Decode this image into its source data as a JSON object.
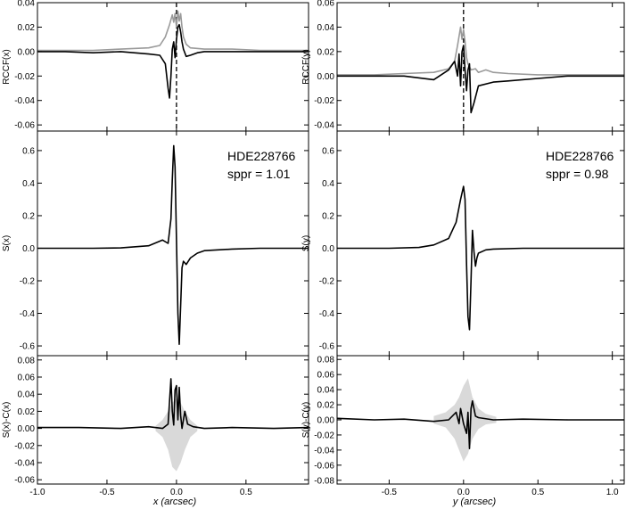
{
  "figure": {
    "annotations": {
      "left": [
        "HDE228766",
        "sppr = 1.01"
      ],
      "right": [
        "HDE228766",
        "sppr = 0.98"
      ]
    },
    "xlabels": {
      "left": "x (arcsec)",
      "right": "y (arcsec)"
    },
    "colors": {
      "black": "#000000",
      "gray": "#9a9a9a",
      "band": "#d9d9d9"
    }
  },
  "chart_data": [
    {
      "id": "rccf_x",
      "type": "line",
      "ylabel": "RCCF(x)",
      "ylim": [
        -0.065,
        0.04
      ],
      "xlim": [
        -1.0,
        0.95
      ],
      "yticks": [
        0.04,
        0.02,
        0.0,
        -0.02,
        -0.04,
        -0.06
      ],
      "ytick_labels": [
        "0.04",
        "0.02",
        "0.00",
        "-0.02",
        "-0.04",
        "-0.06"
      ],
      "vline_x": 0.0,
      "series": [
        {
          "color": "#9a9a9a",
          "x": [
            -1.0,
            -0.8,
            -0.6,
            -0.4,
            -0.2,
            -0.12,
            -0.08,
            -0.05,
            -0.03,
            -0.02,
            -0.01,
            0.0,
            0.01,
            0.02,
            0.03,
            0.04,
            0.05,
            0.07,
            0.1,
            0.2,
            0.4,
            0.6,
            0.8,
            0.95
          ],
          "y": [
            0.001,
            0.001,
            0.001,
            0.002,
            0.003,
            0.005,
            0.012,
            0.022,
            0.03,
            0.024,
            0.031,
            0.02,
            0.033,
            0.025,
            0.031,
            0.02,
            0.012,
            0.006,
            0.003,
            0.002,
            0.002,
            0.001,
            0.001,
            0.001
          ]
        },
        {
          "color": "#000000",
          "x": [
            -1.0,
            -0.8,
            -0.6,
            -0.4,
            -0.2,
            -0.12,
            -0.08,
            -0.06,
            -0.05,
            -0.04,
            -0.03,
            -0.02,
            -0.01,
            0.0,
            0.01,
            0.02,
            0.03,
            0.04,
            0.05,
            0.07,
            0.1,
            0.15,
            0.2,
            0.4,
            0.6,
            0.8,
            0.95
          ],
          "y": [
            0.0,
            0.0,
            -0.001,
            0.0,
            -0.002,
            -0.003,
            -0.01,
            -0.03,
            -0.038,
            -0.02,
            0.002,
            0.008,
            -0.005,
            0.01,
            0.02,
            0.022,
            0.016,
            0.008,
            0.002,
            -0.004,
            -0.003,
            -0.001,
            0.0,
            0.0,
            0.0,
            0.0,
            0.0
          ]
        }
      ]
    },
    {
      "id": "rccf_y",
      "type": "line",
      "ylabel": "RCCF(y)",
      "ylim": [
        -0.045,
        0.06
      ],
      "xlim": [
        -0.85,
        1.08
      ],
      "yticks": [
        0.06,
        0.04,
        0.02,
        0.0,
        -0.02,
        -0.04
      ],
      "ytick_labels": [
        "0.06",
        "0.04",
        "0.02",
        "0.00",
        "-0.02",
        "-0.04"
      ],
      "vline_x": 0.0,
      "series": [
        {
          "color": "#9a9a9a",
          "x": [
            -0.85,
            -0.6,
            -0.4,
            -0.2,
            -0.1,
            -0.06,
            -0.04,
            -0.02,
            -0.01,
            0.0,
            0.01,
            0.02,
            0.03,
            0.05,
            0.08,
            0.1,
            0.15,
            0.2,
            0.3,
            0.5,
            0.7,
            0.9,
            1.08
          ],
          "y": [
            0.001,
            0.001,
            0.002,
            0.003,
            0.006,
            0.012,
            0.025,
            0.04,
            0.03,
            0.038,
            0.028,
            0.015,
            0.01,
            0.005,
            0.006,
            0.003,
            0.005,
            0.003,
            0.002,
            0.001,
            0.001,
            0.001,
            0.001
          ]
        },
        {
          "color": "#000000",
          "x": [
            -0.85,
            -0.6,
            -0.4,
            -0.2,
            -0.1,
            -0.06,
            -0.04,
            -0.03,
            -0.02,
            -0.01,
            0.0,
            0.01,
            0.02,
            0.03,
            0.04,
            0.05,
            0.07,
            0.1,
            0.2,
            0.3,
            0.5,
            0.7,
            0.9,
            1.08
          ],
          "y": [
            0.0,
            0.0,
            0.0,
            -0.003,
            0.005,
            0.012,
            0.0,
            0.018,
            -0.008,
            0.02,
            0.025,
            0.005,
            -0.012,
            0.005,
            0.01,
            -0.03,
            -0.022,
            -0.008,
            -0.005,
            -0.004,
            -0.002,
            0.0,
            0.0,
            0.0
          ]
        }
      ]
    },
    {
      "id": "s_x",
      "type": "line",
      "ylabel": "S(x)",
      "ylim": [
        -0.66,
        0.72
      ],
      "xlim": [
        -1.0,
        0.95
      ],
      "yticks": [
        0.6,
        0.4,
        0.2,
        0.0,
        -0.2,
        -0.4,
        -0.6
      ],
      "ytick_labels": [
        "0.6",
        "0.4",
        "0.2",
        "0.0",
        "-0.2",
        "-0.4",
        "-0.6"
      ],
      "series": [
        {
          "color": "#000000",
          "x": [
            -1.0,
            -0.6,
            -0.4,
            -0.2,
            -0.1,
            -0.06,
            -0.04,
            -0.03,
            -0.02,
            -0.01,
            0.0,
            0.01,
            0.02,
            0.03,
            0.04,
            0.05,
            0.07,
            0.1,
            0.15,
            0.2,
            0.4,
            0.6,
            0.95
          ],
          "y": [
            0.0,
            0.0,
            0.002,
            0.015,
            0.05,
            0.03,
            0.18,
            0.42,
            0.63,
            0.5,
            0.05,
            -0.4,
            -0.59,
            -0.35,
            -0.12,
            -0.08,
            -0.1,
            -0.06,
            -0.03,
            -0.015,
            -0.005,
            0.0,
            0.0
          ]
        }
      ]
    },
    {
      "id": "s_y",
      "type": "line",
      "ylabel": "S(y)",
      "ylim": [
        -0.66,
        0.72
      ],
      "xlim": [
        -0.85,
        1.08
      ],
      "yticks": [
        0.6,
        0.4,
        0.2,
        0.0,
        -0.2,
        -0.4,
        -0.6
      ],
      "ytick_labels": [
        "0.6",
        "0.4",
        "0.2",
        "0.0",
        "-0.2",
        "-0.4",
        "-0.6"
      ],
      "series": [
        {
          "color": "#000000",
          "x": [
            -0.85,
            -0.5,
            -0.3,
            -0.2,
            -0.1,
            -0.05,
            -0.02,
            0.0,
            0.01,
            0.02,
            0.03,
            0.04,
            0.05,
            0.06,
            0.07,
            0.08,
            0.09,
            0.1,
            0.15,
            0.2,
            0.4,
            0.7,
            1.08
          ],
          "y": [
            0.0,
            0.0,
            0.005,
            0.02,
            0.06,
            0.16,
            0.3,
            0.38,
            0.3,
            -0.1,
            -0.42,
            -0.5,
            -0.2,
            0.11,
            -0.02,
            -0.11,
            -0.06,
            -0.03,
            -0.01,
            -0.005,
            0.0,
            0.0,
            0.0
          ]
        }
      ]
    },
    {
      "id": "resid_x",
      "type": "line",
      "ylabel": "S(x)-C(x)",
      "ylim": [
        -0.065,
        0.085
      ],
      "xlim": [
        -1.0,
        0.95
      ],
      "yticks": [
        0.08,
        0.06,
        0.04,
        0.02,
        0.0,
        -0.02,
        -0.04,
        -0.06
      ],
      "ytick_labels": [
        "0.08",
        "0.06",
        "0.04",
        "0.02",
        "0.00",
        "-0.02",
        "-0.04",
        "-0.06"
      ],
      "xticks": [
        -1.0,
        -0.5,
        0.0,
        0.5
      ],
      "xtick_labels": [
        "-1.0",
        "-0.5",
        "0.0",
        "0.5"
      ],
      "band": {
        "x": [
          -0.15,
          -0.1,
          -0.06,
          -0.03,
          0.0,
          0.03,
          0.06,
          0.1,
          0.15
        ],
        "upper": [
          0.003,
          0.01,
          0.02,
          0.03,
          0.035,
          0.03,
          0.02,
          0.01,
          0.003
        ],
        "lower": [
          -0.003,
          -0.01,
          -0.025,
          -0.045,
          -0.05,
          -0.04,
          -0.025,
          -0.01,
          -0.003
        ]
      },
      "series": [
        {
          "color": "#000000",
          "x": [
            -1.0,
            -0.7,
            -0.4,
            -0.2,
            -0.1,
            -0.06,
            -0.04,
            -0.03,
            -0.02,
            -0.01,
            0.0,
            0.01,
            0.02,
            0.03,
            0.04,
            0.06,
            0.08,
            0.12,
            0.2,
            0.4,
            0.7,
            0.95
          ],
          "y": [
            0.001,
            0.001,
            0.0,
            0.002,
            0.0,
            0.005,
            0.058,
            0.02,
            0.004,
            0.045,
            0.05,
            0.01,
            0.048,
            0.015,
            0.0,
            0.02,
            0.005,
            0.002,
            0.0,
            0.001,
            0.0,
            0.001
          ]
        }
      ]
    },
    {
      "id": "resid_y",
      "type": "line",
      "ylabel": "S(y)-C(y)",
      "ylim": [
        -0.085,
        0.085
      ],
      "xlim": [
        -0.85,
        1.08
      ],
      "yticks": [
        0.08,
        0.06,
        0.04,
        0.02,
        0.0,
        -0.02,
        -0.04,
        -0.06,
        -0.08
      ],
      "ytick_labels": [
        "0.08",
        "0.06",
        "0.04",
        "0.02",
        "0.00",
        "-0.02",
        "-0.04",
        "-0.06",
        "-0.08"
      ],
      "xticks": [
        -0.5,
        0.0,
        0.5,
        1.0
      ],
      "xtick_labels": [
        "-0.5",
        "0.0",
        "0.5",
        "1.0"
      ],
      "band": {
        "x": [
          -0.2,
          -0.12,
          -0.06,
          -0.03,
          0.0,
          0.03,
          0.06,
          0.1,
          0.15,
          0.22
        ],
        "upper": [
          0.005,
          0.01,
          0.02,
          0.03,
          0.045,
          0.055,
          0.03,
          0.015,
          0.008,
          0.004
        ],
        "lower": [
          -0.005,
          -0.01,
          -0.025,
          -0.04,
          -0.055,
          -0.045,
          -0.025,
          -0.012,
          -0.006,
          -0.004
        ]
      },
      "series": [
        {
          "color": "#000000",
          "x": [
            -0.85,
            -0.6,
            -0.4,
            -0.2,
            -0.1,
            -0.05,
            -0.03,
            -0.02,
            0.0,
            0.02,
            0.03,
            0.04,
            0.05,
            0.06,
            0.08,
            0.1,
            0.2,
            0.4,
            0.7,
            1.08
          ],
          "y": [
            0.002,
            0.0,
            0.001,
            -0.002,
            0.0,
            0.01,
            -0.005,
            0.015,
            -0.005,
            -0.018,
            0.01,
            -0.038,
            0.015,
            0.025,
            0.005,
            0.003,
            0.0,
            0.001,
            0.0,
            0.0
          ]
        }
      ]
    }
  ]
}
